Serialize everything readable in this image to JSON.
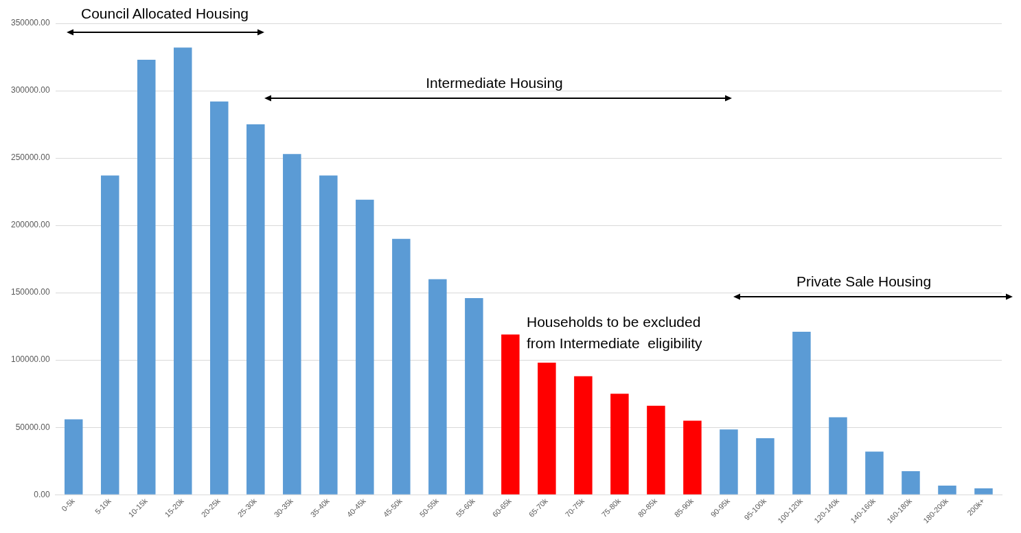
{
  "chart_data": {
    "type": "bar",
    "categories": [
      "0-5k",
      "5-10k",
      "10-15k",
      "15-20k",
      "20-25k",
      "25-30k",
      "30-35k",
      "35-40k",
      "40-45k",
      "45-50k",
      "50-55k",
      "55-60k",
      "60-65k",
      "65-70k",
      "70-75k",
      "75-80k",
      "80-85k",
      "85-90k",
      "90-95k",
      "95-100k",
      "100-120k",
      "120-140k",
      "140-160k",
      "160-180k",
      "180-200k",
      "200k+"
    ],
    "values": [
      56000,
      237000,
      323000,
      332000,
      292000,
      275000,
      253000,
      237000,
      219000,
      190000,
      160000,
      146000,
      119000,
      98000,
      88000,
      75000,
      66000,
      55000,
      48500,
      42000,
      121000,
      57500,
      32000,
      17500,
      6800,
      4700
    ],
    "colors": [
      "#5b9bd5",
      "#5b9bd5",
      "#5b9bd5",
      "#5b9bd5",
      "#5b9bd5",
      "#5b9bd5",
      "#5b9bd5",
      "#5b9bd5",
      "#5b9bd5",
      "#5b9bd5",
      "#5b9bd5",
      "#5b9bd5",
      "#ff0000",
      "#ff0000",
      "#ff0000",
      "#ff0000",
      "#ff0000",
      "#ff0000",
      "#5b9bd5",
      "#5b9bd5",
      "#5b9bd5",
      "#5b9bd5",
      "#5b9bd5",
      "#5b9bd5",
      "#5b9bd5",
      "#5b9bd5"
    ],
    "ylim": [
      0,
      350000
    ],
    "yticks": [
      {
        "value": 0,
        "label": "0.00"
      },
      {
        "value": 50000,
        "label": "50000.00"
      },
      {
        "value": 100000,
        "label": "100000.00"
      },
      {
        "value": 150000,
        "label": "150000.00"
      },
      {
        "value": 200000,
        "label": "200000.00"
      },
      {
        "value": 250000,
        "label": "250000.00"
      },
      {
        "value": 300000,
        "label": "300000.00"
      },
      {
        "value": 350000,
        "label": "350000.00"
      }
    ],
    "grid": "y",
    "legend": false,
    "annotations": [
      "Council Allocated Housing",
      "Intermediate Housing",
      "Private Sale Housing",
      "Households to be excluded\nfrom Intermediate  eligibility"
    ]
  }
}
